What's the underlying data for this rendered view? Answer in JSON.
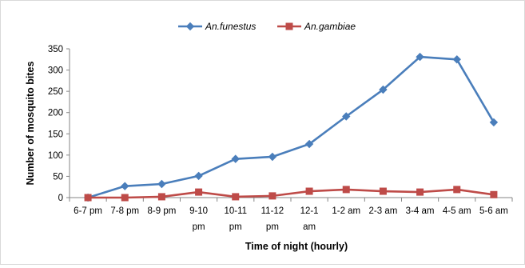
{
  "chart_data": {
    "type": "line",
    "title": "",
    "xlabel": "Time of night (hourly)",
    "ylabel": "Number of mosquito bites",
    "ylim": [
      0,
      350
    ],
    "yticks": [
      0,
      50,
      100,
      150,
      200,
      250,
      300,
      350
    ],
    "grid": false,
    "legend_position": "top",
    "categories": [
      [
        "6-7 pm"
      ],
      [
        "7-8 pm"
      ],
      [
        "8-9 pm"
      ],
      [
        "9-10",
        "pm"
      ],
      [
        "10-11",
        "pm"
      ],
      [
        "11-12",
        "pm"
      ],
      [
        "12-1",
        "am"
      ],
      [
        "1-2 am"
      ],
      [
        "2-3 am"
      ],
      [
        "3-4 am"
      ],
      [
        "4-5 am"
      ],
      [
        "5-6 am"
      ]
    ],
    "series": [
      {
        "name": "An.funestus",
        "color": "#4a7ebb",
        "marker": "diamond",
        "values": [
          0,
          27,
          32,
          51,
          91,
          96,
          126,
          191,
          254,
          331,
          325,
          177
        ]
      },
      {
        "name": "An.gambiae",
        "color": "#be4b48",
        "marker": "square",
        "values": [
          0,
          0,
          2,
          13,
          2,
          4,
          15,
          19,
          15,
          13,
          19,
          7
        ]
      }
    ]
  }
}
